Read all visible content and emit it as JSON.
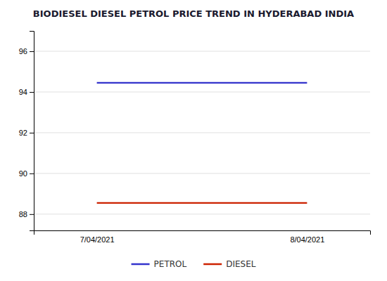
{
  "chart_data": {
    "type": "line",
    "title": "BIODIESEL DIESEL PETROL PRICE TREND IN HYDERABAD INDIA",
    "categories": [
      "7/04/2021",
      "8/04/2021"
    ],
    "series": [
      {
        "name": "PETROL",
        "color": "#3333cc",
        "values": [
          94.45,
          94.45
        ]
      },
      {
        "name": "DIESEL",
        "color": "#cc2200",
        "values": [
          88.55,
          88.55
        ]
      }
    ],
    "ylim": [
      87.2,
      97.0
    ],
    "yticks": [
      88,
      90,
      92,
      94,
      96
    ],
    "grid": true,
    "legend": "bottom"
  }
}
